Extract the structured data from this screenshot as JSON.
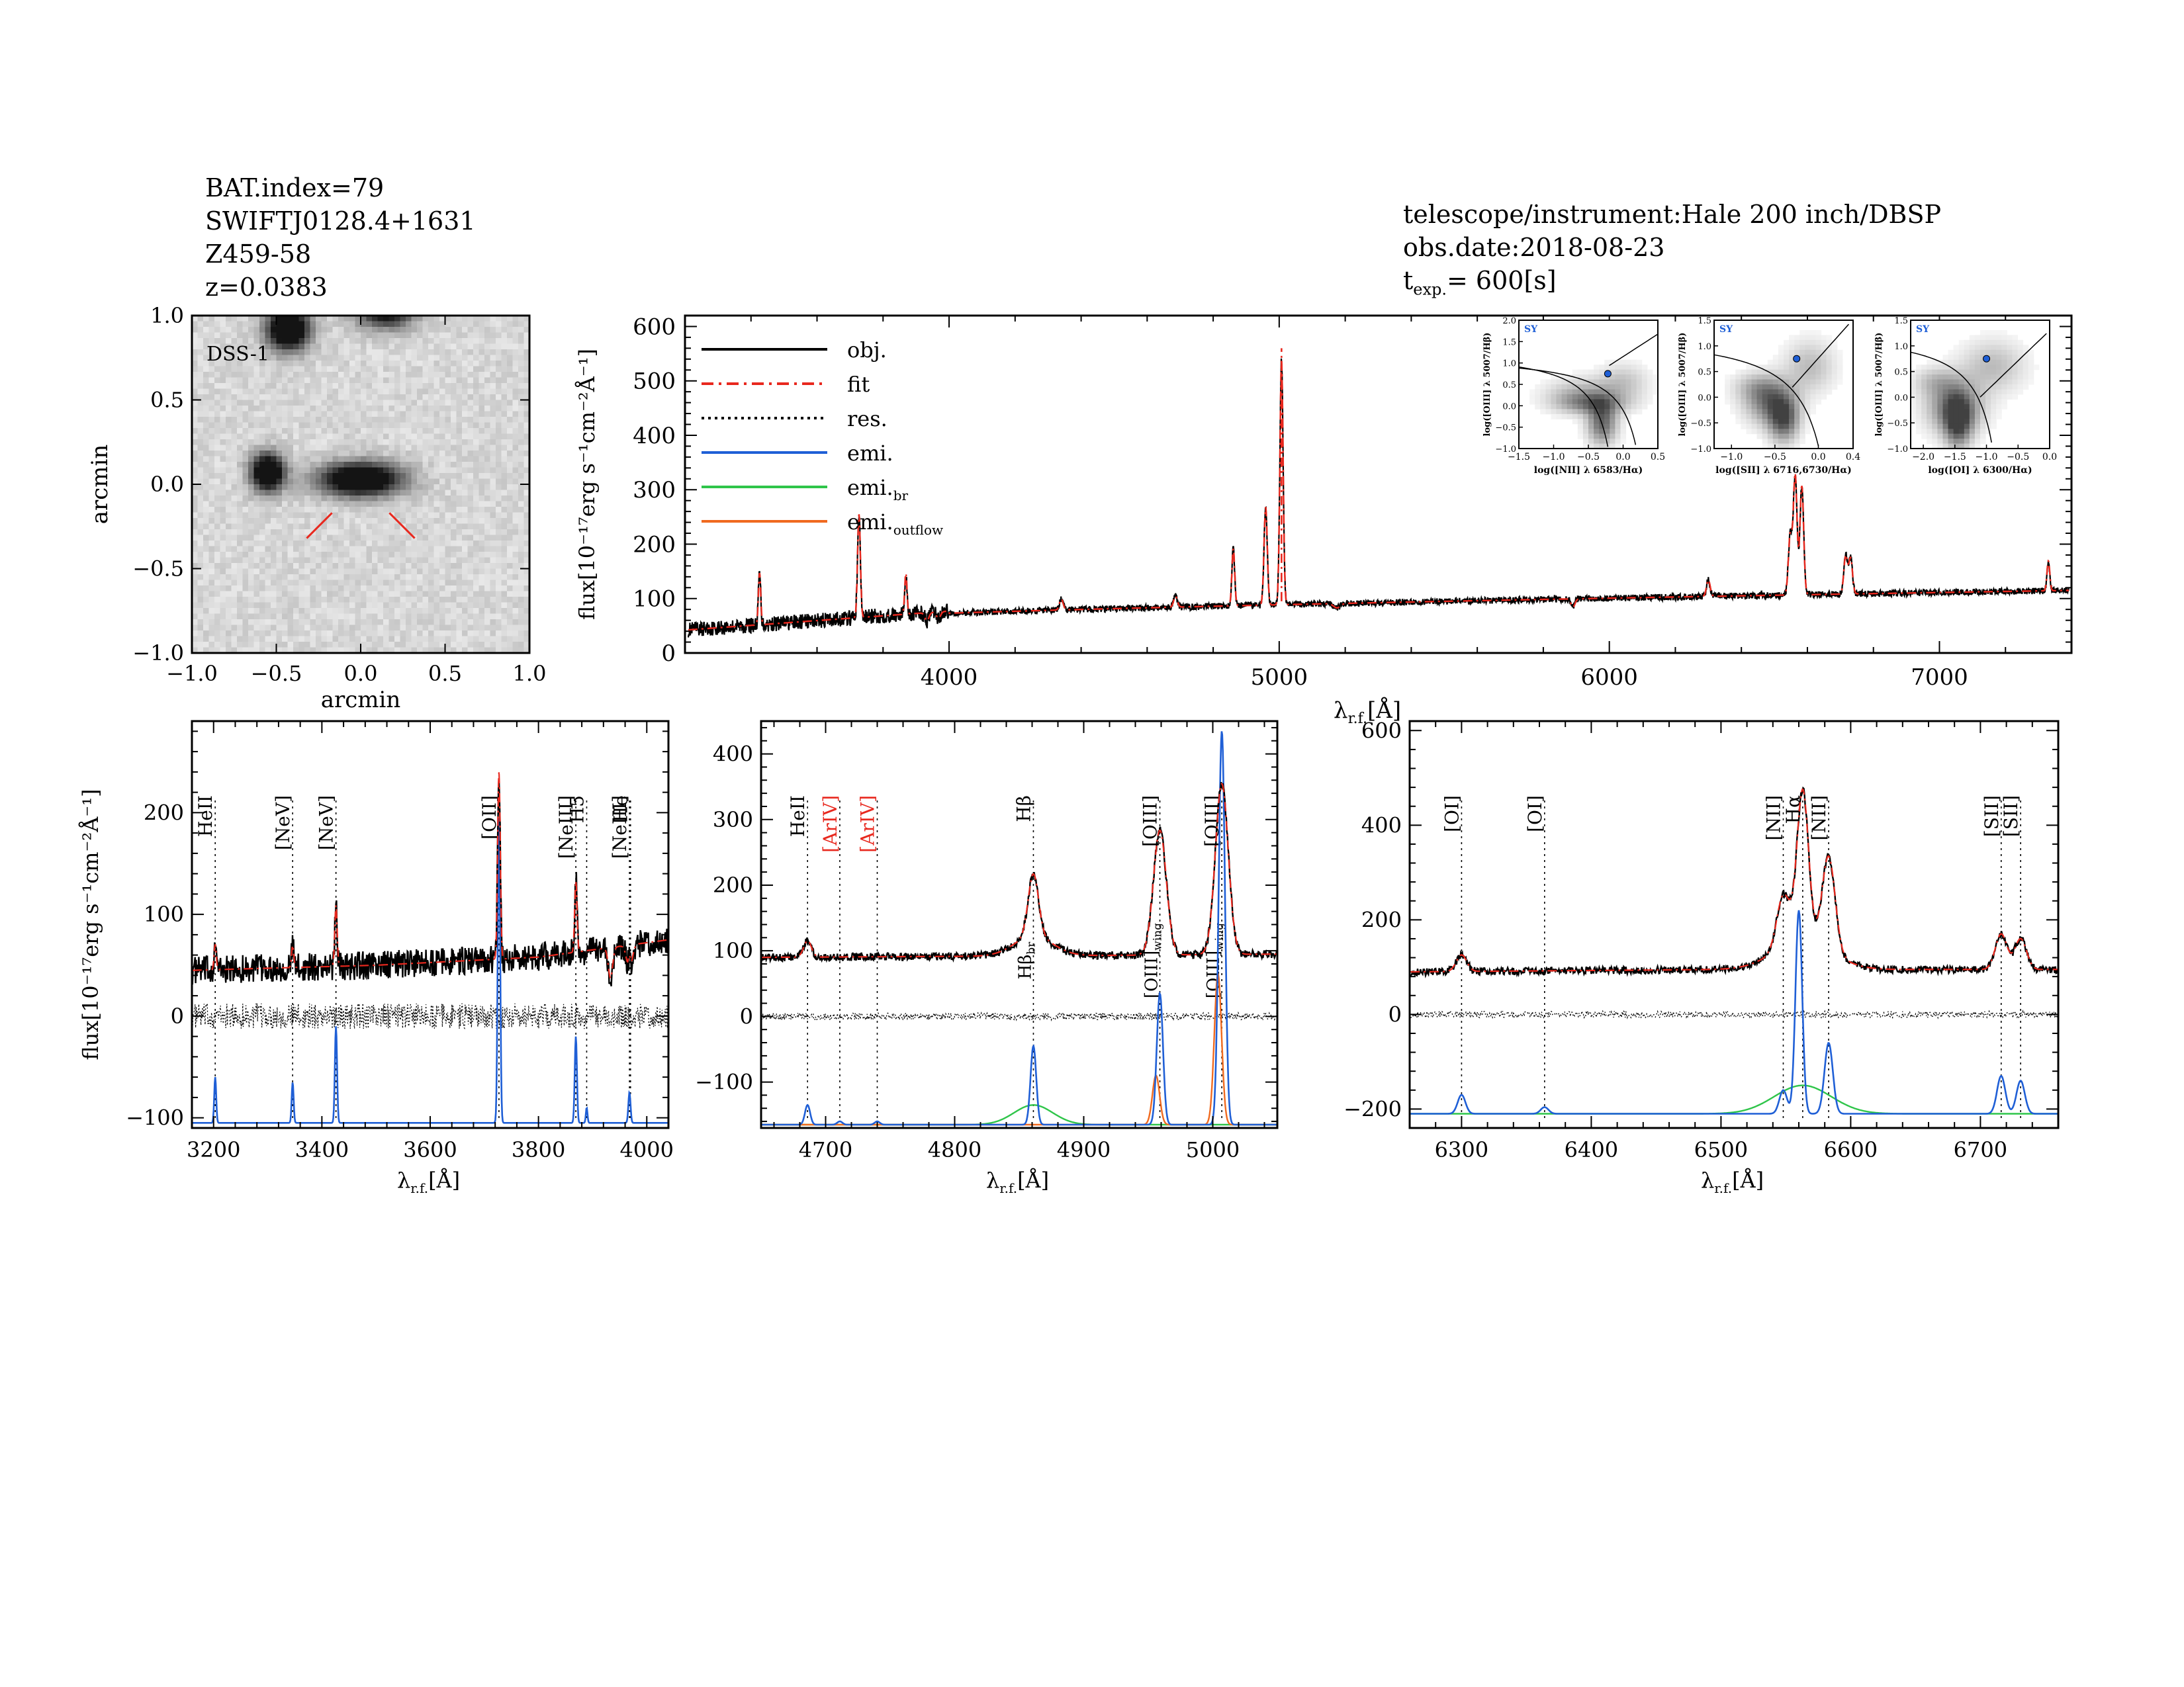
{
  "header_left": [
    "BAT.index=79",
    "SWIFTJ0128.4+1631",
    "Z459-58",
    "z=0.0383"
  ],
  "header_right": {
    "line1": "telescope/instrument:Hale 200 inch/DBSP",
    "line2": "obs.date:2018-08-23",
    "texp_label": "t",
    "texp_sub": "exp.",
    "texp_value": "= 600[s]"
  },
  "colors": {
    "obj": "#000000",
    "fit": "#e8281e",
    "emi": "#1f5fd6",
    "emi_br": "#2fc54a",
    "emi_outflow": "#f06a1f"
  },
  "image_panel": {
    "label": "DSS-1",
    "xlabel": "arcmin",
    "ylabel": "arcmin",
    "xlim": [
      -1.0,
      1.0
    ],
    "ylim": [
      -1.0,
      1.0
    ],
    "ticks": [
      -1.0,
      -0.5,
      0.0,
      0.5,
      1.0
    ],
    "tick_labels": [
      "−1.0",
      "−0.5",
      "0.0",
      "0.5",
      "1.0"
    ],
    "sources": [
      {
        "x": -0.43,
        "y": 0.92,
        "sx": 0.09,
        "sy": 0.09,
        "amp": 1.0
      },
      {
        "x": 0.15,
        "y": 1.02,
        "sx": 0.12,
        "sy": 0.07,
        "amp": 0.7
      },
      {
        "x": -0.55,
        "y": 0.07,
        "sx": 0.07,
        "sy": 0.08,
        "amp": 1.0
      },
      {
        "x": 0.0,
        "y": 0.03,
        "sx": 0.17,
        "sy": 0.07,
        "amp": 1.0
      }
    ]
  },
  "main_panel": {
    "ylabel": "flux[10⁻¹⁷erg s⁻¹cm⁻²Å⁻¹]",
    "xlabel": "λ",
    "xlabel_sub": "r.f.",
    "xlabel_unit": "[Å]",
    "xlim": [
      3200,
      7400
    ],
    "ylim": [
      0,
      620
    ],
    "xticks": [
      4000,
      5000,
      6000,
      7000
    ],
    "yticks": [
      0,
      100,
      200,
      300,
      400,
      500,
      600
    ],
    "legend": [
      {
        "label": "obj.",
        "style": "solid",
        "color": "#000000"
      },
      {
        "label": "fit",
        "style": "dashdot",
        "color": "#e8281e"
      },
      {
        "label": "res.",
        "style": "dotted",
        "color": "#000000"
      },
      {
        "label": "emi.",
        "style": "solid",
        "color": "#1f5fd6"
      },
      {
        "label": "emi.",
        "sub": "br",
        "style": "solid",
        "color": "#2fc54a"
      },
      {
        "label": "emi.",
        "sub": "outflow",
        "style": "solid",
        "color": "#f06a1f"
      }
    ],
    "lines": [
      {
        "x": 3426,
        "a": 95,
        "w": 2.5
      },
      {
        "x": 3727,
        "a": 190,
        "w": 3
      },
      {
        "x": 3869,
        "a": 75,
        "w": 2.5
      },
      {
        "x": 4340,
        "a": 20,
        "w": 4
      },
      {
        "x": 4686,
        "a": 20,
        "w": 4
      },
      {
        "x": 4861,
        "a": 105,
        "w": 3
      },
      {
        "x": 4959,
        "a": 180,
        "w": 3.5
      },
      {
        "x": 5007,
        "a": 450,
        "w": 3.5
      },
      {
        "x": 6300,
        "a": 30,
        "w": 4
      },
      {
        "x": 6548,
        "a": 110,
        "w": 4
      },
      {
        "x": 6563,
        "a": 220,
        "w": 4
      },
      {
        "x": 6583,
        "a": 200,
        "w": 4
      },
      {
        "x": 6716,
        "a": 70,
        "w": 4
      },
      {
        "x": 6731,
        "a": 65,
        "w": 4
      },
      {
        "x": 7330,
        "a": 55,
        "w": 3
      }
    ],
    "insets": [
      {
        "xlabel": "log([NII] λ 6583/Hα)",
        "ylabel": "log([OIII] λ 5007/Hβ)",
        "tag": "SY",
        "xlim": [
          -1.5,
          0.5
        ],
        "ylim": [
          -1.0,
          2.0
        ],
        "xticks": [
          -1.5,
          -1.0,
          -0.5,
          0.0,
          0.5
        ],
        "xtick_labels": [
          "−1.5",
          "−1.0",
          "−0.5",
          "0.0",
          "0.5"
        ],
        "yticks": [
          -1.0,
          -0.5,
          0.0,
          0.5,
          1.0,
          1.5,
          2.0
        ],
        "ytick_labels": [
          "−1.0",
          "−0.5",
          "0.0",
          "0.5",
          "1.0",
          "1.5",
          "2.0"
        ],
        "point": [
          -0.22,
          0.75
        ]
      },
      {
        "xlabel": "log([SII] λ 6716,6730/Hα)",
        "ylabel": "log([OIII] λ 5007/Hβ)",
        "tag": "SY",
        "xlim": [
          -1.2,
          0.4
        ],
        "ylim": [
          -1.0,
          1.5
        ],
        "xticks": [
          -1.0,
          -0.5,
          0.0,
          0.4
        ],
        "xtick_labels": [
          "−1.0",
          "−0.5",
          "0.0",
          "0.4"
        ],
        "yticks": [
          -1.0,
          -0.5,
          0.0,
          0.5,
          1.0,
          1.5
        ],
        "ytick_labels": [
          "−1.0",
          "−0.5",
          "0.0",
          "0.5",
          "1.0",
          "1.5"
        ],
        "point": [
          -0.25,
          0.75
        ]
      },
      {
        "xlabel": "log([OI] λ 6300/Hα)",
        "ylabel": "log([OIII] λ 5007/Hβ)",
        "tag": "SY",
        "xlim": [
          -2.2,
          0.0
        ],
        "ylim": [
          -1.0,
          1.5
        ],
        "xticks": [
          -2.0,
          -1.5,
          -1.0,
          -0.5,
          0.0
        ],
        "xtick_labels": [
          "−2.0",
          "−1.5",
          "−1.0",
          "−0.5",
          "0.0"
        ],
        "yticks": [
          -1.0,
          -0.5,
          0.0,
          0.5,
          1.0,
          1.5
        ],
        "ytick_labels": [
          "−1.0",
          "−0.5",
          "0.0",
          "0.5",
          "1.0",
          "1.5"
        ],
        "point": [
          -1.0,
          0.75
        ]
      }
    ]
  },
  "zoom_panels": [
    {
      "xlim": [
        3160,
        4040
      ],
      "ylim": [
        -110,
        290
      ],
      "xticks": [
        3200,
        3400,
        3600,
        3800,
        4000
      ],
      "yticks": [
        -100,
        0,
        100,
        200
      ],
      "ytick_labels": [
        "−100",
        "0",
        "100",
        "200"
      ],
      "ylabel": "flux[10⁻¹⁷erg s⁻¹cm⁻²Å⁻¹]",
      "xlabel": "λ",
      "xlabel_sub": "r.f.",
      "xlabel_unit": "[Å]",
      "baseline": -105,
      "cont": [
        [
          3160,
          45
        ],
        [
          3500,
          50
        ],
        [
          3800,
          58
        ],
        [
          4040,
          75
        ]
      ],
      "markers": [
        {
          "x": 3203,
          "label": "HeII",
          "color": "#000000"
        },
        {
          "x": 3346,
          "label": "[NeV]",
          "color": "#000000"
        },
        {
          "x": 3426,
          "label": "[NeV]",
          "color": "#000000"
        },
        {
          "x": 3727,
          "label": "[OII]",
          "color": "#000000"
        },
        {
          "x": 3869,
          "label": "[NeIII]",
          "color": "#000000"
        },
        {
          "x": 3889,
          "label": "H5",
          "color": "#000000"
        },
        {
          "x": 3968,
          "label": "[NeIII]",
          "color": "#000000"
        },
        {
          "x": 3970,
          "label": "He",
          "color": "#000000"
        }
      ],
      "emi": [
        {
          "x": 3203,
          "a": 45,
          "w": 1.8
        },
        {
          "x": 3346,
          "a": 40,
          "w": 1.8
        },
        {
          "x": 3426,
          "a": 95,
          "w": 2.0
        },
        {
          "x": 3727,
          "a": 300,
          "w": 2.2
        },
        {
          "x": 3869,
          "a": 85,
          "w": 2.0
        },
        {
          "x": 3889,
          "a": 15,
          "w": 1.5
        },
        {
          "x": 3968,
          "a": 30,
          "w": 2.0
        }
      ],
      "br": [],
      "outflow": [],
      "fitlines": [
        {
          "x": 3203,
          "a": 25,
          "w": 2.0
        },
        {
          "x": 3346,
          "a": 22,
          "w": 2.0
        },
        {
          "x": 3426,
          "a": 60,
          "w": 2.2
        },
        {
          "x": 3727,
          "a": 185,
          "w": 2.4
        },
        {
          "x": 3869,
          "a": 70,
          "w": 2.2
        },
        {
          "x": 3968,
          "a": 15,
          "w": 2.0
        }
      ],
      "absorb": [
        {
          "x": 3933,
          "a": 30,
          "w": 4
        },
        {
          "x": 3968,
          "a": 25,
          "w": 5
        }
      ]
    },
    {
      "xlim": [
        4650,
        5050
      ],
      "ylim": [
        -170,
        450
      ],
      "xticks": [
        4700,
        4800,
        4900,
        5000
      ],
      "yticks": [
        -100,
        0,
        100,
        200,
        300,
        400
      ],
      "ytick_labels": [
        "−100",
        "0",
        "100",
        "200",
        "300",
        "400"
      ],
      "xlabel": "λ",
      "xlabel_sub": "r.f.",
      "xlabel_unit": "[Å]",
      "baseline": -165,
      "cont": [
        [
          4650,
          90
        ],
        [
          4850,
          92
        ],
        [
          5050,
          95
        ]
      ],
      "markers": [
        {
          "x": 4686,
          "label": "HeII",
          "color": "#000000"
        },
        {
          "x": 4711,
          "label": "[ArIV]",
          "color": "#e8281e"
        },
        {
          "x": 4740,
          "label": "[ArIV]",
          "color": "#e8281e"
        },
        {
          "x": 4861,
          "label": "Hβ",
          "color": "#000000"
        },
        {
          "x": 4959,
          "label": "[OIII]",
          "color": "#000000"
        },
        {
          "x": 5007,
          "label": "[OIII]",
          "color": "#000000"
        }
      ],
      "low_labels": [
        {
          "x": 4861,
          "label": "Hβ",
          "sub": "br"
        },
        {
          "x": 4959,
          "label": "[OIII]",
          "sub": "wing"
        },
        {
          "x": 5007,
          "label": "[OIII]",
          "sub": "wing"
        }
      ],
      "emi": [
        {
          "x": 4686,
          "a": 30,
          "w": 2.0
        },
        {
          "x": 4711,
          "a": 5,
          "w": 2.0
        },
        {
          "x": 4740,
          "a": 5,
          "w": 2.0
        },
        {
          "x": 4861,
          "a": 120,
          "w": 2.2
        },
        {
          "x": 4959,
          "a": 200,
          "w": 2.4
        },
        {
          "x": 5007,
          "a": 600,
          "w": 2.4
        }
      ],
      "br": [
        {
          "x": 4861,
          "a": 30,
          "w": 15
        }
      ],
      "outflow": [
        {
          "x": 4956,
          "a": 75,
          "w": 2.8
        },
        {
          "x": 5004,
          "a": 230,
          "w": 2.8
        }
      ],
      "fitlines": [
        {
          "x": 4686,
          "a": 25,
          "w": 3
        },
        {
          "x": 4861,
          "a": 95,
          "w": 4
        },
        {
          "x": 4959,
          "a": 190,
          "w": 5
        },
        {
          "x": 5007,
          "a": 260,
          "w": 5
        }
      ],
      "absorb": []
    },
    {
      "xlim": [
        6260,
        6760
      ],
      "ylim": [
        -240,
        620
      ],
      "xticks": [
        6300,
        6400,
        6500,
        6600,
        6700
      ],
      "yticks": [
        -200,
        0,
        200,
        400,
        600
      ],
      "ytick_labels": [
        "−200",
        "0",
        "200",
        "400",
        "600"
      ],
      "xlabel": "λ",
      "xlabel_sub": "r.f.",
      "xlabel_unit": "[Å]",
      "baseline": -210,
      "cont": [
        [
          6260,
          90
        ],
        [
          6500,
          95
        ],
        [
          6760,
          95
        ]
      ],
      "markers": [
        {
          "x": 6300,
          "label": "[OI]",
          "color": "#000000"
        },
        {
          "x": 6364,
          "label": "[OI]",
          "color": "#000000"
        },
        {
          "x": 6548,
          "label": "[NII]",
          "color": "#000000"
        },
        {
          "x": 6563,
          "label": "Hα",
          "color": "#000000"
        },
        {
          "x": 6583,
          "label": "[NII]",
          "color": "#000000"
        },
        {
          "x": 6716,
          "label": "[SII]",
          "color": "#000000"
        },
        {
          "x": 6731,
          "label": "[SII]",
          "color": "#000000"
        }
      ],
      "emi": [
        {
          "x": 6300,
          "a": 40,
          "w": 3.0
        },
        {
          "x": 6364,
          "a": 14,
          "w": 3.0
        },
        {
          "x": 6548,
          "a": 50,
          "w": 3.0
        },
        {
          "x": 6560,
          "a": 430,
          "w": 2.6
        },
        {
          "x": 6583,
          "a": 150,
          "w": 3.2
        },
        {
          "x": 6716,
          "a": 80,
          "w": 3.2
        },
        {
          "x": 6731,
          "a": 70,
          "w": 3.2
        }
      ],
      "br": [
        {
          "x": 6563,
          "a": 60,
          "w": 22
        }
      ],
      "outflow": [],
      "fitlines": [
        {
          "x": 6300,
          "a": 35,
          "w": 4
        },
        {
          "x": 6548,
          "a": 110,
          "w": 5
        },
        {
          "x": 6563,
          "a": 320,
          "w": 4.5
        },
        {
          "x": 6583,
          "a": 200,
          "w": 5
        },
        {
          "x": 6716,
          "a": 75,
          "w": 4.5
        },
        {
          "x": 6731,
          "a": 65,
          "w": 4.5
        }
      ],
      "absorb": []
    }
  ]
}
